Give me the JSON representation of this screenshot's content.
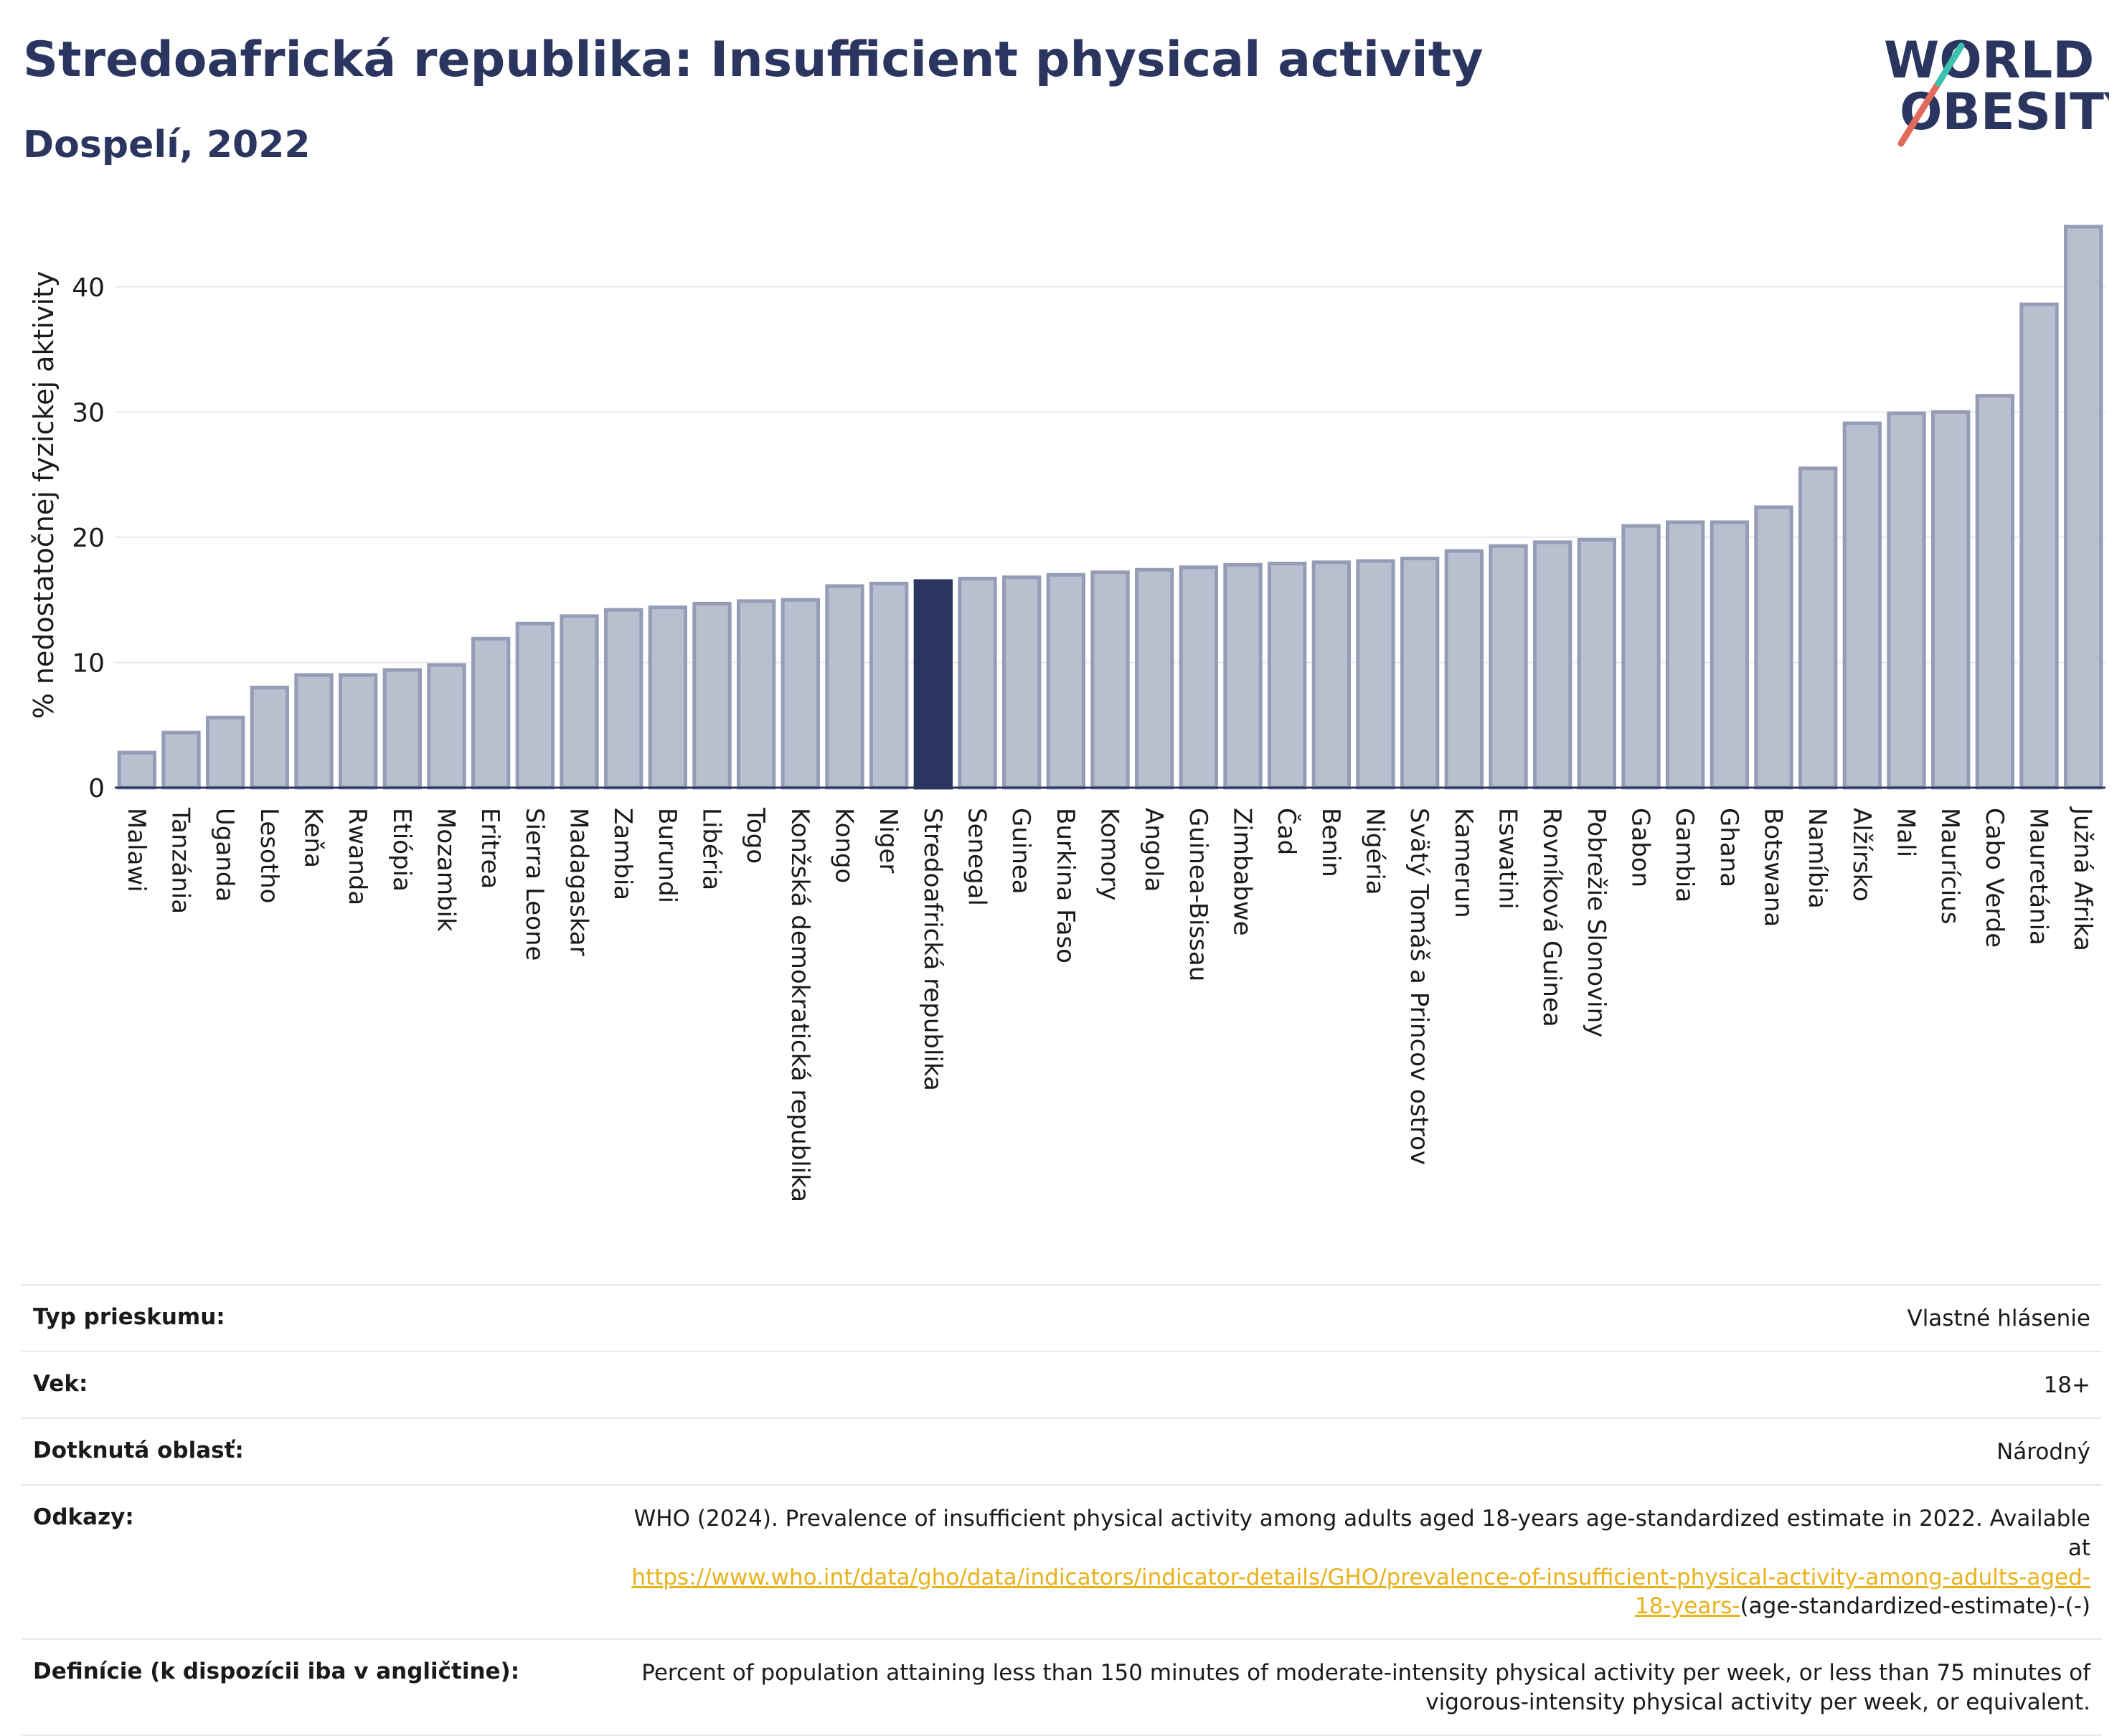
{
  "header": {
    "title": "Stredoafrická republika: Insufficient physical activity",
    "subtitle": "Dospelí, 2022",
    "logo": {
      "line1": "WORLD",
      "line2": "OBESITY",
      "accent_colors": [
        "#e26a5a",
        "#3cbfae"
      ]
    }
  },
  "chart_data": {
    "type": "bar",
    "title": "",
    "xlabel": "",
    "ylabel": "% nedostatočnej fyzickej aktivity",
    "ylim": [
      0,
      45
    ],
    "yticks": [
      0,
      10,
      20,
      30,
      40
    ],
    "grid": true,
    "highlight": "Stredoafrická republika",
    "colors": {
      "bar": "#babfcf",
      "bar_stroke": "#959cb5",
      "highlight": "#2b3660"
    },
    "categories": [
      "Malawi",
      "Tanzánia",
      "Uganda",
      "Lesotho",
      "Keňa",
      "Rwanda",
      "Etiópia",
      "Mozambik",
      "Eritrea",
      "Sierra Leone",
      "Madagaskar",
      "Zambia",
      "Burundi",
      "Libéria",
      "Togo",
      "Konžská demokratická republika",
      "Kongo",
      "Niger",
      "Stredoafrická republika",
      "Senegal",
      "Guinea",
      "Burkina Faso",
      "Komory",
      "Angola",
      "Guinea-Bissau",
      "Zimbabwe",
      "Čad",
      "Benin",
      "Nigéria",
      "Svätý Tomáš a Princov ostrov",
      "Kamerun",
      "Eswatini",
      "Rovníková Guinea",
      "Pobrežie Slonoviny",
      "Gabon",
      "Gambia",
      "Ghana",
      "Botswana",
      "Namíbia",
      "Alžírsko",
      "Mali",
      "Maurícius",
      "Cabo Verde",
      "Mauretánia",
      "Južná Afrika"
    ],
    "values": [
      2.8,
      4.4,
      5.6,
      8.0,
      9.0,
      9.0,
      9.4,
      9.8,
      11.9,
      13.1,
      13.7,
      14.2,
      14.4,
      14.7,
      14.9,
      15.0,
      16.1,
      16.3,
      16.5,
      16.7,
      16.8,
      17.0,
      17.2,
      17.4,
      17.6,
      17.8,
      17.9,
      18.0,
      18.1,
      18.3,
      18.9,
      19.3,
      19.6,
      19.8,
      20.9,
      21.2,
      21.2,
      22.4,
      25.5,
      29.1,
      29.9,
      30.0,
      31.3,
      38.6,
      44.8
    ]
  },
  "info": {
    "survey_label": "Typ prieskumu:",
    "survey_value": "Vlastné hlásenie",
    "age_label": "Vek:",
    "age_value": "18+",
    "area_label": "Dotknutá oblasť:",
    "area_value": "Národný",
    "refs_label": "Odkazy:",
    "refs_text": "WHO (2024). Prevalence of insufficient physical activity among adults aged 18-years age-standardized estimate in 2022. Available at",
    "refs_link": "https://www.who.int/data/gho/data/indicators/indicator-details/GHO/prevalence-of-insufficient-physical-activity-among-adults-aged-18-years-",
    "refs_suffix": "(age-standardized-estimate)-(-)",
    "defs_label": "Definície (k dispozícii iba v angličtine):",
    "defs_value": "Percent of population attaining less than 150 minutes of moderate-intensity physical activity per week, or less than 75 minutes of vigorous-intensity physical activity per week, or equivalent."
  }
}
